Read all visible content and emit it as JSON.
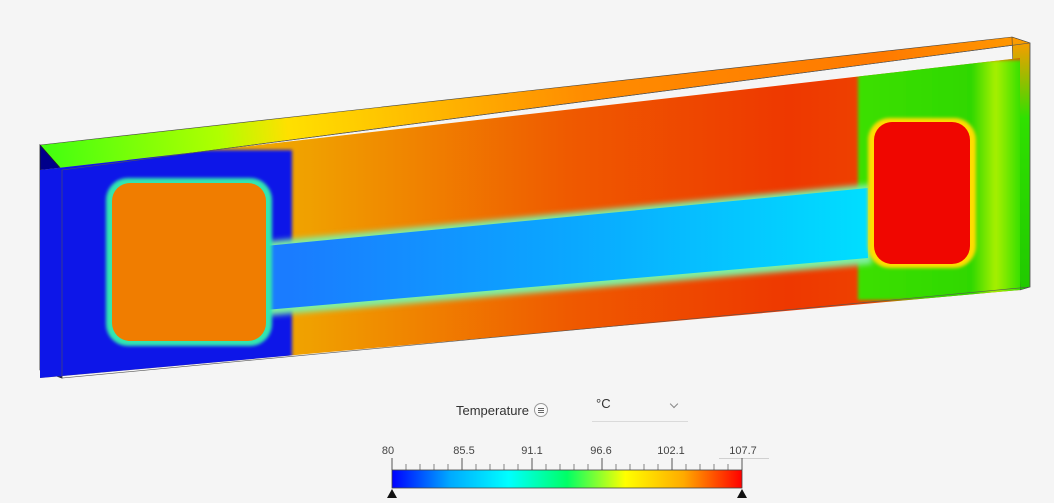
{
  "legend": {
    "title": "Temperature",
    "menu_icon": "list-menu-icon",
    "unit": "°C",
    "unit_dropdown_icon": "chevron-down-icon",
    "min": 80,
    "max": 107.7,
    "tick_labels": [
      "80",
      "85.5",
      "91.1",
      "96.6",
      "102.1",
      "107.7"
    ],
    "colormap": [
      "#0000ff",
      "#00aaff",
      "#00ffff",
      "#00ff66",
      "#ffff00",
      "#ffaa00",
      "#ff0000"
    ]
  }
}
